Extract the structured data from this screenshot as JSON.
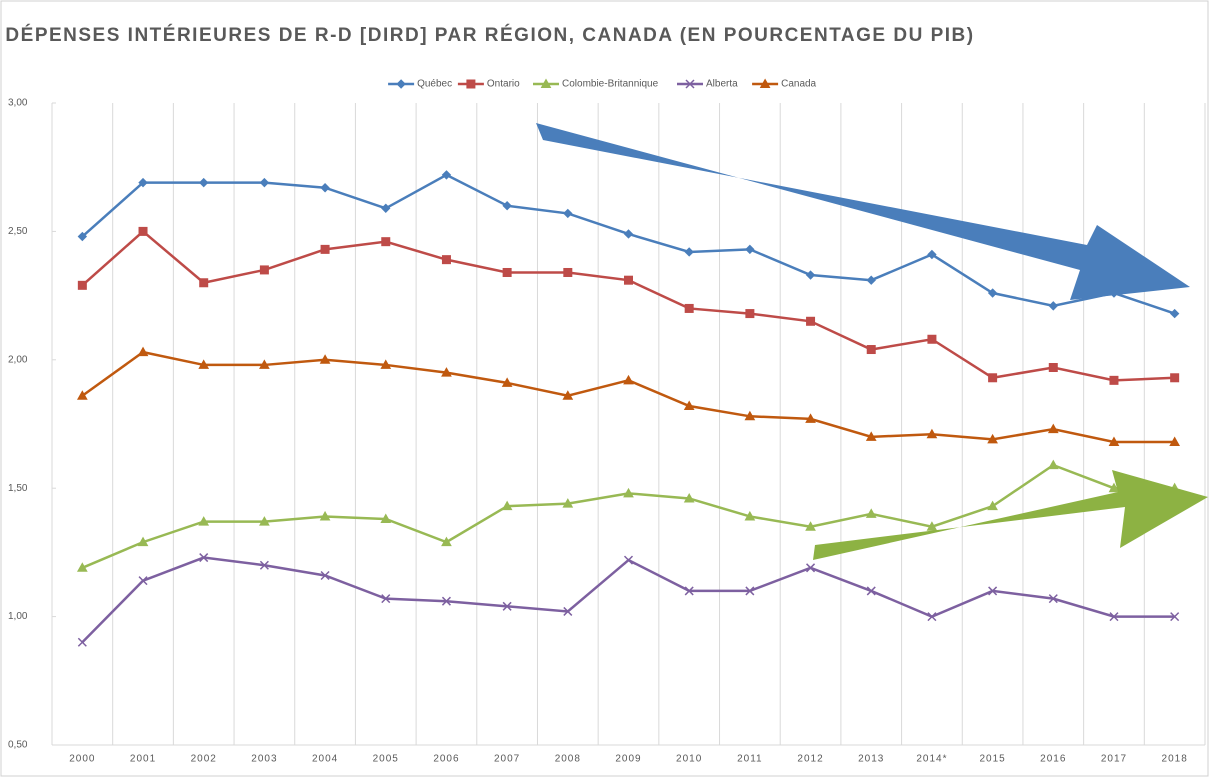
{
  "chart_data": {
    "type": "line",
    "title": "DÉPENSES INTÉRIEURES DE R-D [DIRD] PAR RÉGION, CANADA (EN POURCENTAGE DU PIB)",
    "categories": [
      "2000",
      "2001",
      "2002",
      "2003",
      "2004",
      "2005",
      "2006",
      "2007",
      "2008",
      "2009",
      "2010",
      "2011",
      "2012",
      "2013",
      "2014*",
      "2015",
      "2016",
      "2017",
      "2018"
    ],
    "series": [
      {
        "name": "Québec",
        "color": "#4a7ebb",
        "marker": "diamond",
        "values": [
          2.48,
          2.69,
          2.69,
          2.69,
          2.67,
          2.59,
          2.72,
          2.6,
          2.57,
          2.49,
          2.42,
          2.43,
          2.33,
          2.31,
          2.41,
          2.26,
          2.21,
          2.26,
          2.18
        ]
      },
      {
        "name": "Ontario",
        "color": "#be4b48",
        "marker": "square",
        "values": [
          2.29,
          2.5,
          2.3,
          2.35,
          2.43,
          2.46,
          2.39,
          2.34,
          2.34,
          2.31,
          2.2,
          2.18,
          2.15,
          2.04,
          2.08,
          1.93,
          1.97,
          1.92,
          1.93
        ]
      },
      {
        "name": "Colombie-Britannique",
        "color": "#98b954",
        "marker": "triangle",
        "values": [
          1.19,
          1.29,
          1.37,
          1.37,
          1.39,
          1.38,
          1.29,
          1.43,
          1.44,
          1.48,
          1.46,
          1.39,
          1.35,
          1.4,
          1.35,
          1.43,
          1.59,
          1.5,
          1.5
        ]
      },
      {
        "name": "Alberta",
        "color": "#7d60a0",
        "marker": "x",
        "values": [
          0.9,
          1.14,
          1.23,
          1.2,
          1.16,
          1.07,
          1.06,
          1.04,
          1.02,
          1.22,
          1.1,
          1.1,
          1.19,
          1.1,
          1.0,
          1.1,
          1.07,
          1.0,
          1.0
        ]
      },
      {
        "name": "Canada",
        "color": "#c0590f",
        "marker": "triangle",
        "values": [
          1.86,
          2.03,
          1.98,
          1.98,
          2.0,
          1.98,
          1.95,
          1.91,
          1.86,
          1.92,
          1.82,
          1.78,
          1.77,
          1.7,
          1.71,
          1.69,
          1.73,
          1.68,
          1.68
        ]
      }
    ],
    "ylim": [
      0.5,
      3.0
    ],
    "yticks": [
      {
        "value": 0.5,
        "label": "0,50"
      },
      {
        "value": 1.0,
        "label": "1,00"
      },
      {
        "value": 1.5,
        "label": "1,50"
      },
      {
        "value": 2.0,
        "label": "2,00"
      },
      {
        "value": 2.5,
        "label": "2,50"
      },
      {
        "value": 3.0,
        "label": "3,00"
      }
    ],
    "grid": true,
    "legend": "top"
  }
}
